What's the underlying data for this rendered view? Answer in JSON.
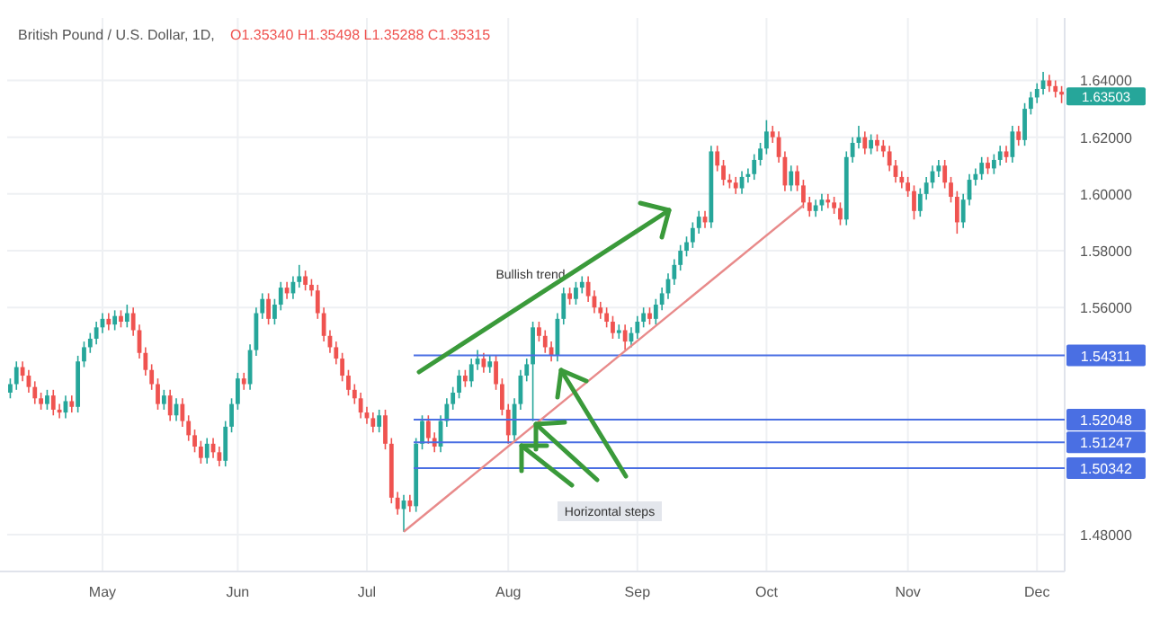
{
  "chart_data": {
    "type": "candlestick",
    "title": "British Pound / U.S. Dollar, 1D,",
    "subtitle": "O1.35340 H1.35498 L1.35288 C1.35315",
    "categories": [
      null,
      null,
      null,
      null,
      null,
      null,
      null,
      null,
      null,
      null,
      null,
      null,
      null,
      null,
      null,
      "May",
      null,
      null,
      null,
      null,
      null,
      null,
      null,
      null,
      null,
      null,
      null,
      null,
      null,
      null,
      null,
      null,
      null,
      null,
      null,
      null,
      null,
      "Jun",
      null,
      null,
      null,
      null,
      null,
      null,
      null,
      null,
      null,
      null,
      null,
      null,
      null,
      null,
      null,
      null,
      null,
      null,
      null,
      null,
      "Jul",
      null,
      null,
      null,
      null,
      null,
      null,
      null,
      null,
      null,
      null,
      null,
      null,
      null,
      null,
      null,
      null,
      null,
      null,
      null,
      null,
      null,
      null,
      "Aug",
      null,
      null,
      null,
      null,
      null,
      null,
      null,
      null,
      null,
      null,
      null,
      null,
      null,
      null,
      null,
      null,
      null,
      null,
      null,
      null,
      "Sep",
      null,
      null,
      null,
      null,
      null,
      null,
      null,
      null,
      null,
      null,
      null,
      null,
      null,
      null,
      null,
      null,
      null,
      null,
      null,
      null,
      "Oct",
      null,
      null,
      null,
      null,
      null,
      null,
      null,
      null,
      null,
      null,
      null,
      null,
      null,
      null,
      null,
      null,
      null,
      null,
      null,
      null,
      null,
      null,
      "Nov",
      null,
      null,
      null,
      null,
      null,
      null,
      null,
      null,
      null,
      null,
      null,
      null,
      null,
      null,
      null,
      null,
      null,
      null,
      null,
      null,
      "Dec",
      null,
      null,
      null,
      null
    ],
    "ohlc": [
      [
        1.53,
        1.535,
        1.528,
        1.533
      ],
      [
        1.533,
        1.541,
        1.531,
        1.539
      ],
      [
        1.539,
        1.541,
        1.534,
        1.536
      ],
      [
        1.536,
        1.538,
        1.53,
        1.532
      ],
      [
        1.532,
        1.534,
        1.526,
        1.528
      ],
      [
        1.528,
        1.53,
        1.524,
        1.526
      ],
      [
        1.526,
        1.531,
        1.524,
        1.529
      ],
      [
        1.529,
        1.531,
        1.522,
        1.524
      ],
      [
        1.524,
        1.526,
        1.521,
        1.523
      ],
      [
        1.523,
        1.529,
        1.521,
        1.527
      ],
      [
        1.527,
        1.529,
        1.523,
        1.525
      ],
      [
        1.525,
        1.543,
        1.523,
        1.541
      ],
      [
        1.541,
        1.548,
        1.539,
        1.546
      ],
      [
        1.546,
        1.551,
        1.544,
        1.549
      ],
      [
        1.549,
        1.555,
        1.547,
        1.553
      ],
      [
        1.553,
        1.558,
        1.551,
        1.556
      ],
      [
        1.556,
        1.558,
        1.552,
        1.554
      ],
      [
        1.554,
        1.559,
        1.552,
        1.557
      ],
      [
        1.557,
        1.559,
        1.553,
        1.555
      ],
      [
        1.555,
        1.561,
        1.553,
        1.558
      ],
      [
        1.558,
        1.56,
        1.55,
        1.552
      ],
      [
        1.552,
        1.554,
        1.542,
        1.544
      ],
      [
        1.544,
        1.546,
        1.536,
        1.538
      ],
      [
        1.538,
        1.54,
        1.531,
        1.533
      ],
      [
        1.533,
        1.535,
        1.524,
        1.526
      ],
      [
        1.526,
        1.531,
        1.524,
        1.529
      ],
      [
        1.529,
        1.531,
        1.52,
        1.522
      ],
      [
        1.522,
        1.528,
        1.52,
        1.526
      ],
      [
        1.526,
        1.528,
        1.518,
        1.52
      ],
      [
        1.52,
        1.522,
        1.513,
        1.515
      ],
      [
        1.515,
        1.517,
        1.509,
        1.511
      ],
      [
        1.511,
        1.513,
        1.505,
        1.507
      ],
      [
        1.507,
        1.514,
        1.505,
        1.512
      ],
      [
        1.512,
        1.514,
        1.507,
        1.509
      ],
      [
        1.509,
        1.511,
        1.504,
        1.506
      ],
      [
        1.506,
        1.52,
        1.504,
        1.518
      ],
      [
        1.518,
        1.528,
        1.516,
        1.526
      ],
      [
        1.526,
        1.537,
        1.524,
        1.535
      ],
      [
        1.535,
        1.537,
        1.531,
        1.533
      ],
      [
        1.533,
        1.547,
        1.531,
        1.545
      ],
      [
        1.545,
        1.56,
        1.543,
        1.558
      ],
      [
        1.558,
        1.565,
        1.556,
        1.563
      ],
      [
        1.563,
        1.565,
        1.554,
        1.556
      ],
      [
        1.556,
        1.563,
        1.554,
        1.561
      ],
      [
        1.561,
        1.569,
        1.559,
        1.567
      ],
      [
        1.567,
        1.569,
        1.563,
        1.565
      ],
      [
        1.565,
        1.571,
        1.563,
        1.569
      ],
      [
        1.569,
        1.575,
        1.567,
        1.571
      ],
      [
        1.571,
        1.573,
        1.566,
        1.568
      ],
      [
        1.568,
        1.57,
        1.564,
        1.566
      ],
      [
        1.566,
        1.568,
        1.556,
        1.558
      ],
      [
        1.558,
        1.56,
        1.548,
        1.55
      ],
      [
        1.55,
        1.552,
        1.544,
        1.546
      ],
      [
        1.546,
        1.548,
        1.54,
        1.542
      ],
      [
        1.542,
        1.544,
        1.534,
        1.536
      ],
      [
        1.536,
        1.538,
        1.529,
        1.531
      ],
      [
        1.531,
        1.533,
        1.526,
        1.528
      ],
      [
        1.528,
        1.53,
        1.521,
        1.523
      ],
      [
        1.523,
        1.525,
        1.519,
        1.521
      ],
      [
        1.521,
        1.523,
        1.516,
        1.518
      ],
      [
        1.518,
        1.524,
        1.516,
        1.522
      ],
      [
        1.522,
        1.524,
        1.51,
        1.512
      ],
      [
        1.512,
        1.514,
        1.491,
        1.493
      ],
      [
        1.493,
        1.495,
        1.487,
        1.489
      ],
      [
        1.489,
        1.494,
        1.481,
        1.492
      ],
      [
        1.492,
        1.494,
        1.488,
        1.49
      ],
      [
        1.49,
        1.514,
        1.488,
        1.512
      ],
      [
        1.512,
        1.522,
        1.51,
        1.52
      ],
      [
        1.52,
        1.522,
        1.512,
        1.514
      ],
      [
        1.514,
        1.516,
        1.509,
        1.511
      ],
      [
        1.511,
        1.522,
        1.509,
        1.52
      ],
      [
        1.52,
        1.528,
        1.518,
        1.526
      ],
      [
        1.526,
        1.532,
        1.524,
        1.53
      ],
      [
        1.53,
        1.538,
        1.528,
        1.536
      ],
      [
        1.536,
        1.538,
        1.532,
        1.534
      ],
      [
        1.534,
        1.542,
        1.532,
        1.54
      ],
      [
        1.54,
        1.545,
        1.538,
        1.542
      ],
      [
        1.542,
        1.544,
        1.537,
        1.539
      ],
      [
        1.539,
        1.543,
        1.537,
        1.541
      ],
      [
        1.541,
        1.543,
        1.531,
        1.533
      ],
      [
        1.533,
        1.535,
        1.522,
        1.524
      ],
      [
        1.524,
        1.526,
        1.512,
        1.515
      ],
      [
        1.515,
        1.528,
        1.513,
        1.526
      ],
      [
        1.526,
        1.538,
        1.524,
        1.536
      ],
      [
        1.536,
        1.542,
        1.534,
        1.54
      ],
      [
        1.54,
        1.555,
        1.52,
        1.553
      ],
      [
        1.553,
        1.555,
        1.548,
        1.55
      ],
      [
        1.55,
        1.552,
        1.544,
        1.546
      ],
      [
        1.546,
        1.548,
        1.541,
        1.543
      ],
      [
        1.543,
        1.558,
        1.541,
        1.556
      ],
      [
        1.556,
        1.567,
        1.554,
        1.565
      ],
      [
        1.565,
        1.567,
        1.561,
        1.563
      ],
      [
        1.563,
        1.569,
        1.561,
        1.567
      ],
      [
        1.567,
        1.571,
        1.565,
        1.569
      ],
      [
        1.569,
        1.571,
        1.562,
        1.564
      ],
      [
        1.564,
        1.566,
        1.558,
        1.56
      ],
      [
        1.56,
        1.562,
        1.556,
        1.558
      ],
      [
        1.558,
        1.56,
        1.553,
        1.555
      ],
      [
        1.555,
        1.557,
        1.549,
        1.551
      ],
      [
        1.551,
        1.554,
        1.549,
        1.552
      ],
      [
        1.552,
        1.554,
        1.545,
        1.548
      ],
      [
        1.548,
        1.553,
        1.546,
        1.551
      ],
      [
        1.551,
        1.557,
        1.549,
        1.555
      ],
      [
        1.555,
        1.56,
        1.553,
        1.558
      ],
      [
        1.558,
        1.56,
        1.554,
        1.556
      ],
      [
        1.556,
        1.563,
        1.554,
        1.561
      ],
      [
        1.561,
        1.567,
        1.559,
        1.565
      ],
      [
        1.565,
        1.572,
        1.563,
        1.57
      ],
      [
        1.57,
        1.577,
        1.568,
        1.575
      ],
      [
        1.575,
        1.582,
        1.573,
        1.58
      ],
      [
        1.58,
        1.585,
        1.578,
        1.583
      ],
      [
        1.583,
        1.59,
        1.581,
        1.588
      ],
      [
        1.588,
        1.594,
        1.586,
        1.592
      ],
      [
        1.592,
        1.594,
        1.588,
        1.59
      ],
      [
        1.59,
        1.617,
        1.588,
        1.615
      ],
      [
        1.615,
        1.617,
        1.608,
        1.61
      ],
      [
        1.61,
        1.612,
        1.603,
        1.605
      ],
      [
        1.605,
        1.607,
        1.602,
        1.604
      ],
      [
        1.604,
        1.606,
        1.6,
        1.602
      ],
      [
        1.602,
        1.608,
        1.6,
        1.606
      ],
      [
        1.606,
        1.609,
        1.604,
        1.607
      ],
      [
        1.607,
        1.614,
        1.605,
        1.612
      ],
      [
        1.612,
        1.618,
        1.61,
        1.616
      ],
      [
        1.616,
        1.626,
        1.614,
        1.622
      ],
      [
        1.622,
        1.624,
        1.618,
        1.62
      ],
      [
        1.62,
        1.622,
        1.611,
        1.613
      ],
      [
        1.613,
        1.615,
        1.601,
        1.603
      ],
      [
        1.603,
        1.61,
        1.601,
        1.608
      ],
      [
        1.608,
        1.61,
        1.601,
        1.603
      ],
      [
        1.603,
        1.605,
        1.595,
        1.597
      ],
      [
        1.597,
        1.599,
        1.592,
        1.594
      ],
      [
        1.594,
        1.598,
        1.592,
        1.596
      ],
      [
        1.596,
        1.6,
        1.594,
        1.598
      ],
      [
        1.598,
        1.6,
        1.595,
        1.597
      ],
      [
        1.597,
        1.599,
        1.593,
        1.595
      ],
      [
        1.595,
        1.597,
        1.589,
        1.591
      ],
      [
        1.591,
        1.615,
        1.589,
        1.613
      ],
      [
        1.613,
        1.62,
        1.611,
        1.618
      ],
      [
        1.618,
        1.624,
        1.616,
        1.62
      ],
      [
        1.62,
        1.622,
        1.614,
        1.616
      ],
      [
        1.616,
        1.621,
        1.614,
        1.619
      ],
      [
        1.619,
        1.621,
        1.615,
        1.617
      ],
      [
        1.617,
        1.619,
        1.613,
        1.615
      ],
      [
        1.615,
        1.617,
        1.608,
        1.61
      ],
      [
        1.61,
        1.612,
        1.604,
        1.606
      ],
      [
        1.606,
        1.608,
        1.602,
        1.604
      ],
      [
        1.604,
        1.606,
        1.599,
        1.601
      ],
      [
        1.601,
        1.603,
        1.591,
        1.594
      ],
      [
        1.594,
        1.602,
        1.592,
        1.6
      ],
      [
        1.6,
        1.606,
        1.598,
        1.604
      ],
      [
        1.604,
        1.61,
        1.602,
        1.608
      ],
      [
        1.608,
        1.612,
        1.606,
        1.61
      ],
      [
        1.61,
        1.612,
        1.602,
        1.604
      ],
      [
        1.604,
        1.606,
        1.597,
        1.599
      ],
      [
        1.599,
        1.601,
        1.586,
        1.59
      ],
      [
        1.59,
        1.6,
        1.588,
        1.598
      ],
      [
        1.598,
        1.607,
        1.596,
        1.605
      ],
      [
        1.605,
        1.609,
        1.603,
        1.607
      ],
      [
        1.607,
        1.613,
        1.605,
        1.611
      ],
      [
        1.611,
        1.613,
        1.607,
        1.609
      ],
      [
        1.609,
        1.614,
        1.607,
        1.612
      ],
      [
        1.612,
        1.617,
        1.61,
        1.615
      ],
      [
        1.615,
        1.617,
        1.611,
        1.613
      ],
      [
        1.613,
        1.624,
        1.611,
        1.622
      ],
      [
        1.622,
        1.624,
        1.617,
        1.619
      ],
      [
        1.619,
        1.632,
        1.617,
        1.63
      ],
      [
        1.63,
        1.636,
        1.628,
        1.634
      ],
      [
        1.634,
        1.639,
        1.632,
        1.637
      ],
      [
        1.637,
        1.643,
        1.635,
        1.64
      ],
      [
        1.64,
        1.642,
        1.636,
        1.638
      ],
      [
        1.638,
        1.64,
        1.634,
        1.636
      ],
      [
        1.636,
        1.638,
        1.632,
        1.635
      ]
    ],
    "series": [
      {
        "type": "line",
        "color": "#e88a8a",
        "values": [
          null,
          null,
          null,
          null,
          null,
          null,
          null,
          null,
          null,
          null,
          null,
          null,
          null,
          null,
          null,
          null,
          null,
          null,
          null,
          null,
          null,
          null,
          null,
          null,
          null,
          null,
          null,
          null,
          null,
          null,
          null,
          null,
          null,
          null,
          null,
          null,
          null,
          null,
          null,
          null,
          null,
          null,
          null,
          null,
          null,
          null,
          null,
          null,
          null,
          null,
          null,
          null,
          null,
          null,
          null,
          null,
          null,
          null,
          null,
          null,
          null,
          null,
          null,
          null,
          1.481,
          null,
          null,
          null,
          null,
          null,
          null,
          null,
          null,
          null,
          null,
          null,
          null,
          null,
          null,
          null,
          null,
          null,
          null,
          null,
          null,
          null,
          null,
          null,
          null,
          null,
          null,
          null,
          null,
          null,
          null,
          null,
          null,
          null,
          null,
          null,
          null,
          null,
          null,
          null,
          null,
          null,
          null,
          null,
          null,
          null,
          null,
          null,
          null,
          null,
          null,
          null,
          null,
          null,
          null,
          null,
          null,
          null,
          null,
          null,
          null,
          null,
          null,
          null,
          null,
          1.596,
          null,
          null,
          null,
          null,
          null,
          null,
          null,
          null,
          null,
          null,
          null,
          null,
          null,
          null,
          null,
          null,
          null,
          null,
          null,
          null,
          null,
          null,
          null,
          null,
          null,
          null,
          null,
          null,
          null,
          null,
          null,
          null,
          null,
          null,
          null,
          null,
          null,
          null,
          null,
          null,
          null,
          null
        ]
      }
    ],
    "ylim": [
      1.467,
      1.662
    ],
    "yticks": [
      {
        "value": 1.48,
        "label": "1.48000"
      },
      {
        "value": 1.56,
        "label": "1.56000"
      },
      {
        "value": 1.58,
        "label": "1.58000"
      },
      {
        "value": 1.6,
        "label": "1.60000"
      },
      {
        "value": 1.62,
        "label": "1.62000"
      },
      {
        "value": 1.64,
        "label": "1.64000"
      }
    ],
    "grid": true,
    "ref_lines": [
      {
        "axis": "y",
        "value": 1.54311,
        "label": "1.54311",
        "color": "#4a6fe3"
      },
      {
        "axis": "y",
        "value": 1.52048,
        "label": "1.52048",
        "color": "#4a6fe3"
      },
      {
        "axis": "y",
        "value": 1.51247,
        "label": "1.51247",
        "color": "#4a6fe3"
      },
      {
        "axis": "y",
        "value": 1.50342,
        "label": "1.50342",
        "color": "#4a6fe3"
      }
    ],
    "annotations": [
      "Bullish trend",
      "Horizontal steps",
      "1.63503"
    ]
  }
}
